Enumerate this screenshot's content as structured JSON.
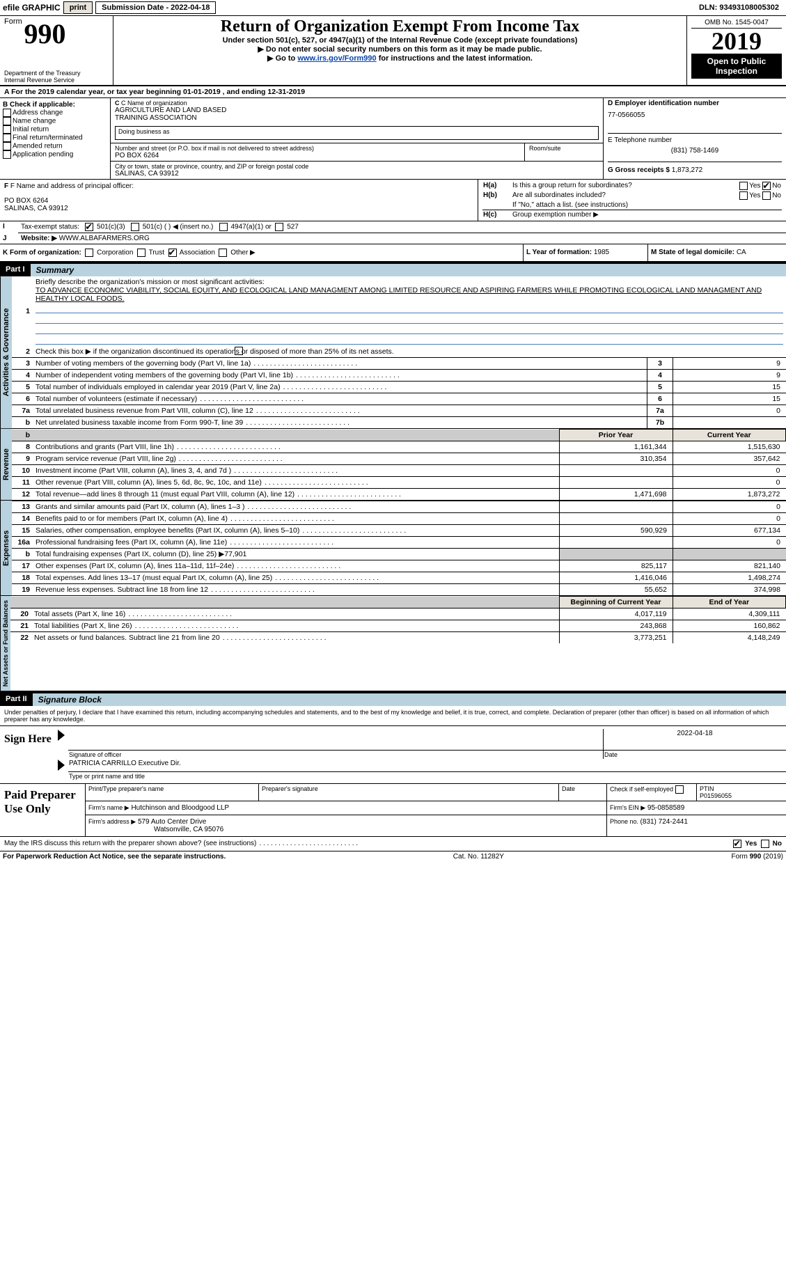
{
  "topbar": {
    "efile": "efile GRAPHIC",
    "print": "print",
    "submission_label": "Submission Date - ",
    "submission_date": "2022-04-18",
    "dln_label": "DLN: ",
    "dln": "93493108005302"
  },
  "header": {
    "form_prefix": "Form",
    "form_number": "990",
    "dept1": "Department of the Treasury",
    "dept2": "Internal Revenue Service",
    "title": "Return of Organization Exempt From Income Tax",
    "subtitle": "Under section 501(c), 527, or 4947(a)(1) of the Internal Revenue Code (except private foundations)",
    "note1": "Do not enter social security numbers on this form as it may be made public.",
    "note2_pre": "Go to ",
    "note2_link": "www.irs.gov/Form990",
    "note2_post": " for instructions and the latest information.",
    "omb": "OMB No. 1545-0047",
    "year": "2019",
    "open_public": "Open to Public Inspection"
  },
  "line_a": {
    "text_pre": "For the 2019 calendar year, or tax year beginning ",
    "begin": "01-01-2019",
    "mid": "   , and ending ",
    "end": "12-31-2019"
  },
  "box_b": {
    "title": "B Check if applicable:",
    "items": [
      "Address change",
      "Name change",
      "Initial return",
      "Final return/terminated",
      "Amended return",
      "Application pending"
    ]
  },
  "box_c": {
    "label": "C Name of organization",
    "name1": "AGRICULTURE AND LAND BASED",
    "name2": "TRAINING ASSOCIATION",
    "dba_label": "Doing business as",
    "street_label": "Number and street (or P.O. box if mail is not delivered to street address)",
    "room_label": "Room/suite",
    "street": "PO BOX 6264",
    "city_label": "City or town, state or province, country, and ZIP or foreign postal code",
    "city": "SALINAS, CA  93912"
  },
  "box_d": {
    "label": "D Employer identification number",
    "value": "77-0566055"
  },
  "box_e": {
    "label": "E Telephone number",
    "value": "(831) 758-1469"
  },
  "box_g": {
    "label": "G Gross receipts $ ",
    "value": "1,873,272"
  },
  "box_f": {
    "label": "F  Name and address of principal officer:",
    "line1": "PO BOX 6264",
    "line2": "SALINAS, CA  93912"
  },
  "box_h": {
    "a": "Is this a group return for subordinates?",
    "b": "Are all subordinates included?",
    "b_note": "If \"No,\" attach a list. (see instructions)",
    "c": "Group exemption number ▶",
    "ha_label": "H(a)",
    "hb_label": "H(b)",
    "hc_label": "H(c)",
    "yes": "Yes",
    "no": "No"
  },
  "line_i": {
    "label": "Tax-exempt status:",
    "o1": "501(c)(3)",
    "o2": "501(c) (   ) ◀ (insert no.)",
    "o3": "4947(a)(1) or",
    "o4": "527"
  },
  "line_j": {
    "label": "Website: ▶",
    "value": "WWW.ALBAFARMERS.ORG"
  },
  "line_k": {
    "label": "K Form of organization:",
    "opts": [
      "Corporation",
      "Trust",
      "Association",
      "Other ▶"
    ],
    "checked_idx": 2
  },
  "line_l": {
    "label": "L Year of formation: ",
    "value": "1985"
  },
  "line_m": {
    "label": "M State of legal domicile: ",
    "value": "CA"
  },
  "part1": {
    "hdr": "Part I",
    "title": "Summary",
    "l1": "Briefly describe the organization's mission or most significant activities:",
    "mission": "TO ADVANCE ECONOMIC VIABILITY, SOCIAL EQUITY, AND ECOLOGICAL LAND MANAGMENT AMONG LIMITED RESOURCE AND ASPIRING FARMERS WHILE PROMOTING ECOLOGICAL LAND MANAGMENT AND HEALTHY LOCAL FOODS.",
    "l2": "Check this box ▶        if the organization discontinued its operations or disposed of more than 25% of its net assets.",
    "rows_single": [
      {
        "n": "3",
        "t": "Number of voting members of the governing body (Part VI, line 1a)",
        "box": "3",
        "v": "9"
      },
      {
        "n": "4",
        "t": "Number of independent voting members of the governing body (Part VI, line 1b)",
        "box": "4",
        "v": "9"
      },
      {
        "n": "5",
        "t": "Total number of individuals employed in calendar year 2019 (Part V, line 2a)",
        "box": "5",
        "v": "15"
      },
      {
        "n": "6",
        "t": "Total number of volunteers (estimate if necessary)",
        "box": "6",
        "v": "15"
      },
      {
        "n": "7a",
        "t": "Total unrelated business revenue from Part VIII, column (C), line 12",
        "box": "7a",
        "v": "0"
      },
      {
        "n": "b",
        "t": "Net unrelated business taxable income from Form 990-T, line 39",
        "box": "7b",
        "v": ""
      }
    ],
    "prior_hdr": "Prior Year",
    "curr_hdr": "Current Year",
    "revenue_rows": [
      {
        "n": "8",
        "t": "Contributions and grants (Part VIII, line 1h)",
        "p": "1,161,344",
        "c": "1,515,630"
      },
      {
        "n": "9",
        "t": "Program service revenue (Part VIII, line 2g)",
        "p": "310,354",
        "c": "357,642"
      },
      {
        "n": "10",
        "t": "Investment income (Part VIII, column (A), lines 3, 4, and 7d )",
        "p": "",
        "c": "0"
      },
      {
        "n": "11",
        "t": "Other revenue (Part VIII, column (A), lines 5, 6d, 8c, 9c, 10c, and 11e)",
        "p": "",
        "c": "0"
      },
      {
        "n": "12",
        "t": "Total revenue—add lines 8 through 11 (must equal Part VIII, column (A), line 12)",
        "p": "1,471,698",
        "c": "1,873,272"
      }
    ],
    "expense_rows": [
      {
        "n": "13",
        "t": "Grants and similar amounts paid (Part IX, column (A), lines 1–3 )",
        "p": "",
        "c": "0"
      },
      {
        "n": "14",
        "t": "Benefits paid to or for members (Part IX, column (A), line 4)",
        "p": "",
        "c": "0"
      },
      {
        "n": "15",
        "t": "Salaries, other compensation, employee benefits (Part IX, column (A), lines 5–10)",
        "p": "590,929",
        "c": "677,134"
      },
      {
        "n": "16a",
        "t": "Professional fundraising fees (Part IX, column (A), line 11e)",
        "p": "",
        "c": "0"
      }
    ],
    "l16b_pre": "Total fundraising expenses (Part IX, column (D), line 25) ▶",
    "l16b_val": "77,901",
    "expense_rows2": [
      {
        "n": "17",
        "t": "Other expenses (Part IX, column (A), lines 11a–11d, 11f–24e)",
        "p": "825,117",
        "c": "821,140"
      },
      {
        "n": "18",
        "t": "Total expenses. Add lines 13–17 (must equal Part IX, column (A), line 25)",
        "p": "1,416,046",
        "c": "1,498,274"
      },
      {
        "n": "19",
        "t": "Revenue less expenses. Subtract line 18 from line 12",
        "p": "55,652",
        "c": "374,998"
      }
    ],
    "net_hdr_p": "Beginning of Current Year",
    "net_hdr_c": "End of Year",
    "net_rows": [
      {
        "n": "20",
        "t": "Total assets (Part X, line 16)",
        "p": "4,017,119",
        "c": "4,309,111"
      },
      {
        "n": "21",
        "t": "Total liabilities (Part X, line 26)",
        "p": "243,868",
        "c": "160,862"
      },
      {
        "n": "22",
        "t": "Net assets or fund balances. Subtract line 21 from line 20",
        "p": "3,773,251",
        "c": "4,148,249"
      }
    ],
    "vlab_gov": "Activities & Governance",
    "vlab_rev": "Revenue",
    "vlab_exp": "Expenses",
    "vlab_net": "Net Assets or Fund Balances"
  },
  "part2": {
    "hdr": "Part II",
    "title": "Signature Block",
    "perjury": "Under penalties of perjury, I declare that I have examined this return, including accompanying schedules and statements, and to the best of my knowledge and belief, it is true, correct, and complete. Declaration of preparer (other than officer) is based on all information of which preparer has any knowledge.",
    "sign_here": "Sign Here",
    "sig_officer": "Signature of officer",
    "sig_date": "Date",
    "sig_date_val": "2022-04-18",
    "officer_name": "PATRICIA CARRILLO  Executive Dir.",
    "type_name": "Type or print name and title",
    "paid": "Paid Preparer Use Only",
    "pp_name_lbl": "Print/Type preparer's name",
    "pp_sig_lbl": "Preparer's signature",
    "pp_date_lbl": "Date",
    "pp_self_lbl": "Check         if self-employed",
    "pp_ptin_lbl": "PTIN",
    "pp_ptin": "P01596055",
    "firm_name_lbl": "Firm's name     ▶",
    "firm_name": "Hutchinson and Bloodgood LLP",
    "firm_ein_lbl": "Firm's EIN ▶",
    "firm_ein": "95-0858589",
    "firm_addr_lbl": "Firm's address ▶",
    "firm_addr1": "579 Auto Center Drive",
    "firm_addr2": "Watsonville, CA  95076",
    "phone_lbl": "Phone no. ",
    "phone": "(831) 724-2441",
    "discuss": "May the IRS discuss this return with the preparer shown above? (see instructions)",
    "yes": "Yes",
    "no": "No"
  },
  "footer": {
    "pra": "For Paperwork Reduction Act Notice, see the separate instructions.",
    "cat": "Cat. No. 11282Y",
    "form": "Form 990 (2019)"
  },
  "colors": {
    "header_bg": "#b8d3df",
    "button_bg": "#e8e3da",
    "link": "#0645ad"
  }
}
